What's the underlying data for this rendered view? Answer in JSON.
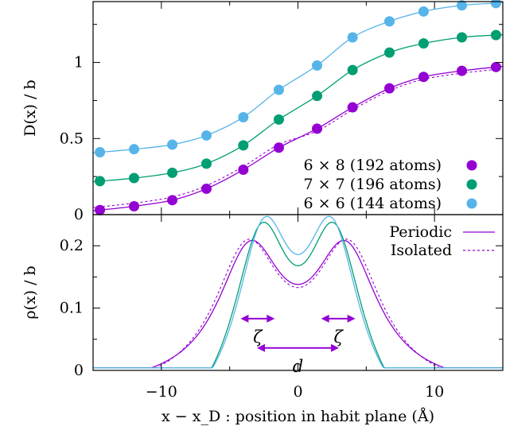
{
  "chart_data": [
    {
      "panel": "top",
      "type": "scatter",
      "ylabel": "D(x) / b",
      "xlim": [
        -15,
        15
      ],
      "ylim": [
        0,
        1.4
      ],
      "yticks": [
        0,
        0.5,
        1
      ],
      "ytick_labels": [
        "0",
        "0.5",
        "1"
      ],
      "grid": false,
      "legend_position": "bottom-right",
      "series": [
        {
          "name": "6 × 8  (192 atoms)",
          "color": "#9400d3",
          "x": [
            -14.5,
            -12,
            -9.2,
            -6.7,
            -4,
            -1.4,
            1.4,
            4,
            6.7,
            9.2,
            12,
            14.5
          ],
          "y": [
            0.03,
            0.055,
            0.095,
            0.17,
            0.295,
            0.44,
            0.565,
            0.705,
            0.83,
            0.905,
            0.945,
            0.97
          ]
        },
        {
          "name": "7 × 7  (196 atoms)",
          "color": "#009e73",
          "x": [
            -14.5,
            -12,
            -9.2,
            -6.7,
            -4,
            -1.4,
            1.4,
            4,
            6.7,
            9.2,
            12,
            14.5
          ],
          "y": [
            0.22,
            0.24,
            0.275,
            0.335,
            0.455,
            0.625,
            0.78,
            0.95,
            1.065,
            1.125,
            1.165,
            1.18
          ]
        },
        {
          "name": "6 × 6  (144 atoms)",
          "color": "#56b4e9",
          "x": [
            -14.5,
            -12,
            -9.2,
            -6.7,
            -4,
            -1.4,
            1.4,
            4,
            6.7,
            9.2,
            12,
            14.5
          ],
          "y": [
            0.41,
            0.43,
            0.46,
            0.52,
            0.64,
            0.82,
            0.98,
            1.165,
            1.27,
            1.335,
            1.375,
            1.39
          ]
        }
      ]
    },
    {
      "panel": "bottom",
      "type": "line",
      "xlabel": "x − x_D :  position in habit plane  (Å)",
      "ylabel": "ρ(x) / b",
      "xlim": [
        -15,
        15
      ],
      "ylim": [
        0,
        0.25
      ],
      "xticks": [
        -10,
        0,
        10
      ],
      "xtick_labels": [
        "−10",
        "0",
        "10"
      ],
      "yticks": [
        0,
        0.1,
        0.2
      ],
      "ytick_labels": [
        "0",
        "0.1",
        "0.2"
      ],
      "grid": false,
      "legend_position": "top-right",
      "legend": [
        {
          "name": "Periodic",
          "style": "solid"
        },
        {
          "name": "Isolated",
          "style": "dashed"
        }
      ],
      "series": [
        {
          "color": "#9400d3",
          "style": "solid",
          "peaks": [
            -3.5,
            3.5
          ],
          "halfwidth": 2.9,
          "peak_value": 0.208,
          "center_value": 0.138
        },
        {
          "color": "#9400d3",
          "style": "dashed",
          "peaks": [
            -3.7,
            3.7
          ],
          "halfwidth": 3.0,
          "peak_value": 0.21,
          "center_value": 0.133
        },
        {
          "color": "#009e73",
          "style": "solid",
          "peaks": [
            -2.7,
            2.7
          ],
          "halfwidth": 2.6,
          "peak_value": 0.236,
          "center_value": 0.168
        },
        {
          "color": "#56b4e9",
          "style": "solid",
          "peaks": [
            -2.5,
            2.5
          ],
          "halfwidth": 2.5,
          "peak_value": 0.245,
          "center_value": 0.186
        }
      ],
      "annotations": [
        {
          "text": "ζ",
          "arrow_from": -4.2,
          "arrow_to": -1.7,
          "y": 0.083
        },
        {
          "text": "ζ",
          "arrow_from": 1.7,
          "arrow_to": 4.2,
          "y": 0.083
        },
        {
          "text": "d",
          "arrow_from": -3.0,
          "arrow_to": 3.0,
          "y": 0.036
        }
      ]
    }
  ]
}
